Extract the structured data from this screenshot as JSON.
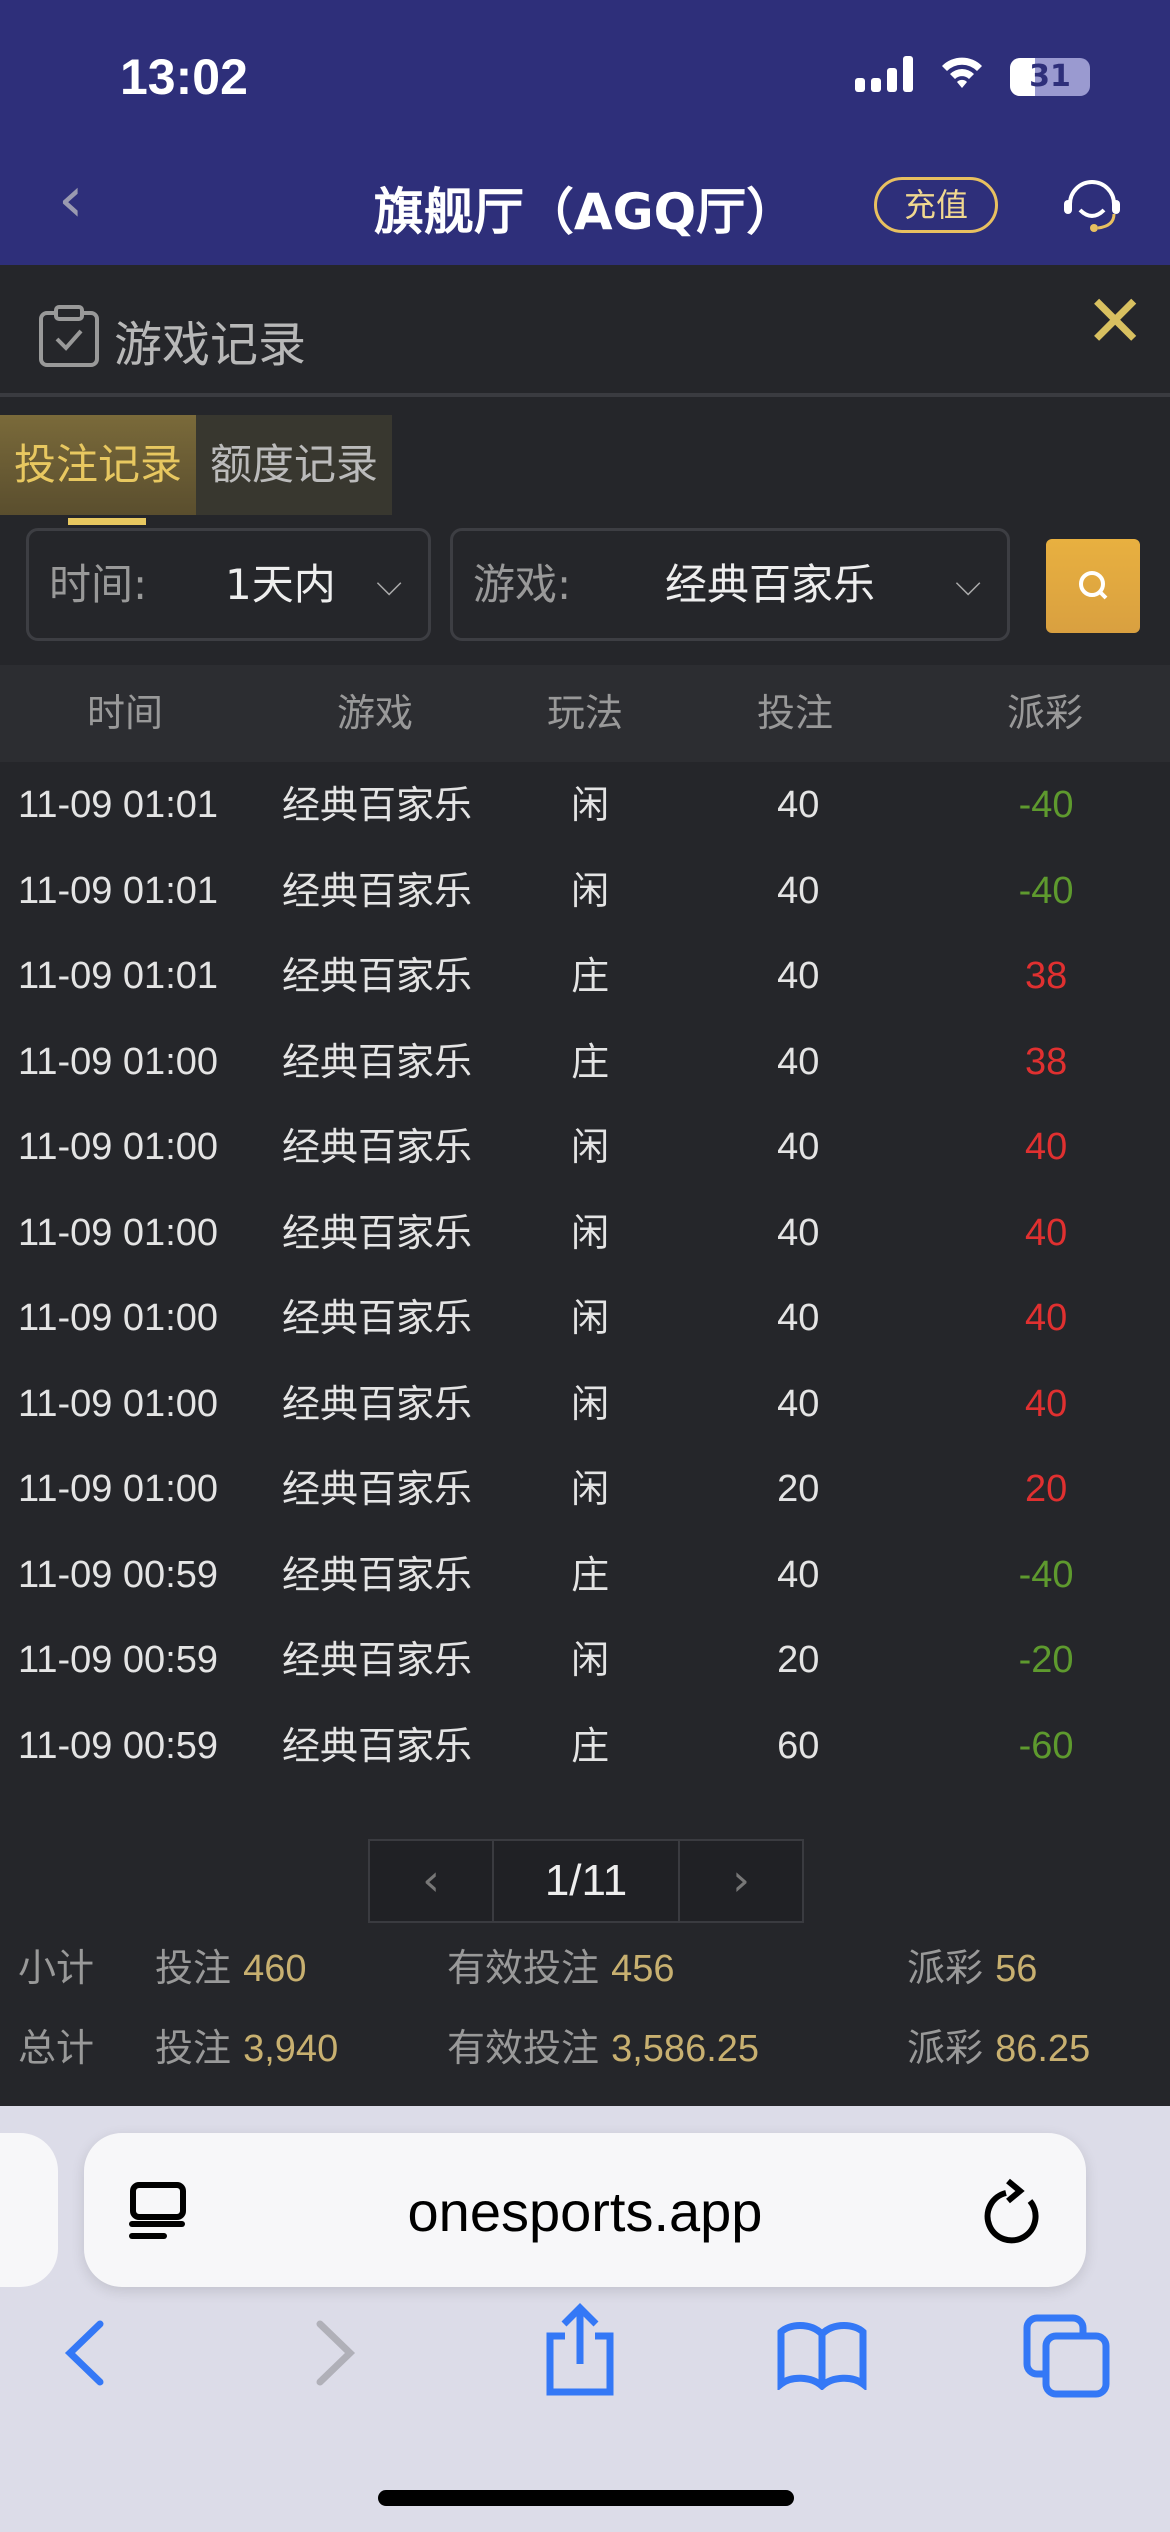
{
  "status_bar": {
    "time": "13:02",
    "battery": "31"
  },
  "header": {
    "title": "旗舰厅（AGQ厅）",
    "recharge_label": "充值"
  },
  "modal": {
    "title": "游戏记录",
    "tabs": [
      {
        "label": "投注记录",
        "active": true
      },
      {
        "label": "额度记录",
        "active": false
      }
    ],
    "filters": {
      "time_label": "时间:",
      "time_value": "1天内",
      "game_label": "游戏:",
      "game_value": "经典百家乐"
    },
    "table": {
      "headers": [
        "时间",
        "游戏",
        "玩法",
        "投注",
        "派彩"
      ],
      "rows": [
        [
          "11-09 01:01",
          "经典百家乐",
          "闲",
          "40",
          "-40"
        ],
        [
          "11-09 01:01",
          "经典百家乐",
          "闲",
          "40",
          "-40"
        ],
        [
          "11-09 01:01",
          "经典百家乐",
          "庄",
          "40",
          "38"
        ],
        [
          "11-09 01:00",
          "经典百家乐",
          "庄",
          "40",
          "38"
        ],
        [
          "11-09 01:00",
          "经典百家乐",
          "闲",
          "40",
          "40"
        ],
        [
          "11-09 01:00",
          "经典百家乐",
          "闲",
          "40",
          "40"
        ],
        [
          "11-09 01:00",
          "经典百家乐",
          "闲",
          "40",
          "40"
        ],
        [
          "11-09 01:00",
          "经典百家乐",
          "闲",
          "40",
          "40"
        ],
        [
          "11-09 01:00",
          "经典百家乐",
          "闲",
          "20",
          "20"
        ],
        [
          "11-09 00:59",
          "经典百家乐",
          "庄",
          "40",
          "-40"
        ],
        [
          "11-09 00:59",
          "经典百家乐",
          "闲",
          "20",
          "-20"
        ],
        [
          "11-09 00:59",
          "经典百家乐",
          "庄",
          "60",
          "-60"
        ]
      ]
    },
    "pagination": {
      "page": "1/11"
    },
    "subtotal": {
      "label": "小计",
      "bet_label": "投注",
      "bet": "460",
      "valid_label": "有效投注",
      "valid": "456",
      "payout_label": "派彩",
      "payout": "56"
    },
    "total": {
      "label": "总计",
      "bet_label": "投注",
      "bet": "3,940",
      "valid_label": "有效投注",
      "valid": "3,586.25",
      "payout_label": "派彩",
      "payout": "86.25"
    }
  },
  "browser": {
    "url": "onesports.app"
  },
  "colors": {
    "header_bg": "#2e2f7a",
    "accent": "#e8c060",
    "negative": "#5e9a2e",
    "positive": "#e03030"
  }
}
